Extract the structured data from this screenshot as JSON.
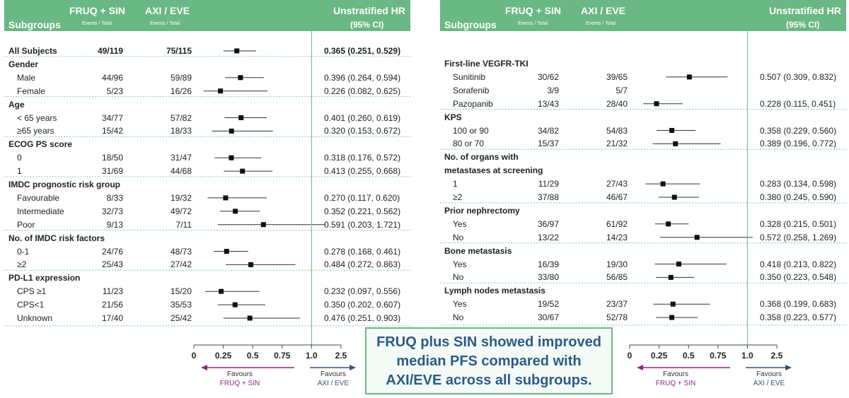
{
  "header": {
    "arm1": "FRUQ + SIN",
    "arm2": "AXI / EVE",
    "events": "Events / Total",
    "subgroups": "Subgroups",
    "hr_title": "Unstratified HR",
    "ci": "(95% CI)"
  },
  "axis": {
    "ticks": [
      "0",
      "0.25",
      "0.5",
      "0.75",
      "1.0",
      "2.5"
    ],
    "favours_left_line1": "Favours",
    "favours_left_line2": "FRUQ + SIN",
    "favours_right_line1": "Favours",
    "favours_right_line2": "AXI / EVE"
  },
  "colors": {
    "header_bg": "#6ab883",
    "left_arrow": "#8b2a7a",
    "right_arrow": "#3b4f7a",
    "ref_line": "#6ab883",
    "callout_text": "#2b5b88"
  },
  "callout": {
    "line1": "FRUQ plus SIN showed improved",
    "line2": "median PFS compared with",
    "line3": "AXI/EVE across all subgroups."
  },
  "chart_data": [
    {
      "type": "forest",
      "x_scale": "ordinal ticks 0, 0.25, 0.5, 0.75, 1.0, 2.5",
      "reference_line": 1.0,
      "rows": [
        {
          "label": "All Subjects",
          "kind": "bold",
          "ev1": "49/119",
          "ev2": "75/115",
          "hr": 0.365,
          "lo": 0.251,
          "hi": 0.529,
          "text": "0.365 (0.251, 0.529)"
        },
        {
          "label": "Gender",
          "kind": "group"
        },
        {
          "label": "Male",
          "ev1": "44/96",
          "ev2": "59/89",
          "hr": 0.396,
          "lo": 0.264,
          "hi": 0.594,
          "text": "0.396 (0.264, 0.594)"
        },
        {
          "label": "Female",
          "ev1": "5/23",
          "ev2": "16/26",
          "hr": 0.226,
          "lo": 0.082,
          "hi": 0.625,
          "text": "0.226 (0.082, 0.625)"
        },
        {
          "label": "Age",
          "kind": "group"
        },
        {
          "label": "< 65 years",
          "ev1": "34/77",
          "ev2": "57/82",
          "hr": 0.401,
          "lo": 0.26,
          "hi": 0.619,
          "text": "0.401 (0.260, 0.619)"
        },
        {
          "label": "≥65 years",
          "ev1": "15/42",
          "ev2": "18/33",
          "hr": 0.32,
          "lo": 0.153,
          "hi": 0.672,
          "text": "0.320 (0.153, 0.672)"
        },
        {
          "label": "ECOG PS score",
          "kind": "group"
        },
        {
          "label": "0",
          "ev1": "18/50",
          "ev2": "31/47",
          "hr": 0.318,
          "lo": 0.176,
          "hi": 0.572,
          "text": "0.318 (0.176, 0.572)"
        },
        {
          "label": "1",
          "ev1": "31/69",
          "ev2": "44/68",
          "hr": 0.413,
          "lo": 0.255,
          "hi": 0.668,
          "text": "0.413 (0.255, 0.668)"
        },
        {
          "label": "IMDC prognostic risk group",
          "kind": "group"
        },
        {
          "label": "Favourable",
          "ev1": "8/33",
          "ev2": "19/32",
          "hr": 0.27,
          "lo": 0.117,
          "hi": 0.62,
          "text": "0.270 (0.117, 0.620)"
        },
        {
          "label": "Intermediate",
          "ev1": "32/73",
          "ev2": "49/72",
          "hr": 0.352,
          "lo": 0.221,
          "hi": 0.562,
          "text": "0.352 (0.221, 0.562)"
        },
        {
          "label": "Poor",
          "ev1": "9/13",
          "ev2": "7/11",
          "hr": 0.591,
          "lo": 0.203,
          "hi": 1.721,
          "text": "0.591 (0.203, 1.721)"
        },
        {
          "label": "No. of IMDC risk factors",
          "kind": "group"
        },
        {
          "label": "0-1",
          "ev1": "24/76",
          "ev2": "48/73",
          "hr": 0.278,
          "lo": 0.168,
          "hi": 0.461,
          "text": "0.278 (0.168, 0.461)"
        },
        {
          "label": "≥2",
          "ev1": "25/43",
          "ev2": "27/42",
          "hr": 0.484,
          "lo": 0.272,
          "hi": 0.863,
          "text": "0.484 (0.272, 0.863)"
        },
        {
          "label": "PD-L1 expression",
          "kind": "group"
        },
        {
          "label": "CPS ≥1",
          "ev1": "11/23",
          "ev2": "15/20",
          "hr": 0.232,
          "lo": 0.097,
          "hi": 0.556,
          "text": "0.232 (0.097, 0.556)"
        },
        {
          "label": "CPS<1",
          "ev1": "21/56",
          "ev2": "35/53",
          "hr": 0.35,
          "lo": 0.202,
          "hi": 0.607,
          "text": "0.350 (0.202, 0.607)"
        },
        {
          "label": "Unknown",
          "ev1": "17/40",
          "ev2": "25/42",
          "hr": 0.476,
          "lo": 0.251,
          "hi": 0.903,
          "text": "0.476 (0.251, 0.903)"
        }
      ]
    },
    {
      "type": "forest",
      "x_scale": "ordinal ticks 0, 0.25, 0.5, 0.75, 1.0, 2.5",
      "reference_line": 1.0,
      "rows": [
        {
          "label": "First-line VEGFR-TKI",
          "kind": "group"
        },
        {
          "label": "Sunitinib",
          "ev1": "30/62",
          "ev2": "39/65",
          "hr": 0.507,
          "lo": 0.309,
          "hi": 0.832,
          "text": "0.507 (0.309, 0.832)"
        },
        {
          "label": "Sorafenib",
          "ev1": "3/9",
          "ev2": "5/7"
        },
        {
          "label": "Pazopanib",
          "ev1": "13/43",
          "ev2": "28/40",
          "hr": 0.228,
          "lo": 0.115,
          "hi": 0.451,
          "text": "0.228 (0.115, 0.451)"
        },
        {
          "label": "KPS",
          "kind": "group"
        },
        {
          "label": "100 or 90",
          "ev1": "34/82",
          "ev2": "54/83",
          "hr": 0.358,
          "lo": 0.229,
          "hi": 0.56,
          "text": "0.358 (0.229, 0.560)"
        },
        {
          "label": "80 or 70",
          "ev1": "15/37",
          "ev2": "21/32",
          "hr": 0.389,
          "lo": 0.196,
          "hi": 0.772,
          "text": "0.389 (0.196, 0.772)"
        },
        {
          "label": "No. of organs with",
          "kind": "group"
        },
        {
          "label": "metastases at screening",
          "kind": "group2"
        },
        {
          "label": "1",
          "ev1": "11/29",
          "ev2": "27/43",
          "hr": 0.283,
          "lo": 0.134,
          "hi": 0.598,
          "text": "0.283 (0.134, 0.598)"
        },
        {
          "label": "≥2",
          "ev1": "37/88",
          "ev2": "46/67",
          "hr": 0.38,
          "lo": 0.245,
          "hi": 0.59,
          "text": "0.380 (0.245, 0.590)"
        },
        {
          "label": "Prior nephrectomy",
          "kind": "group"
        },
        {
          "label": "Yes",
          "ev1": "36/97",
          "ev2": "61/92",
          "hr": 0.328,
          "lo": 0.215,
          "hi": 0.501,
          "text": "0.328 (0.215, 0.501)"
        },
        {
          "label": "No",
          "ev1": "13/22",
          "ev2": "14/23",
          "hr": 0.572,
          "lo": 0.258,
          "hi": 1.269,
          "text": "0.572 (0.258, 1.269)"
        },
        {
          "label": "Bone metastasis",
          "kind": "group"
        },
        {
          "label": "Yes",
          "ev1": "16/39",
          "ev2": "19/30",
          "hr": 0.418,
          "lo": 0.213,
          "hi": 0.822,
          "text": "0.418 (0.213, 0.822)"
        },
        {
          "label": "No",
          "ev1": "33/80",
          "ev2": "56/85",
          "hr": 0.35,
          "lo": 0.223,
          "hi": 0.548,
          "text": "0.350 (0.223, 0.548)"
        },
        {
          "label": "Lymph nodes metastasis",
          "kind": "group"
        },
        {
          "label": "Yes",
          "ev1": "19/52",
          "ev2": "23/37",
          "hr": 0.368,
          "lo": 0.199,
          "hi": 0.683,
          "text": "0.368 (0.199, 0.683)"
        },
        {
          "label": "No",
          "ev1": "30/67",
          "ev2": "52/78",
          "hr": 0.358,
          "lo": 0.223,
          "hi": 0.577,
          "text": "0.358 (0.223, 0.577)"
        }
      ]
    }
  ]
}
